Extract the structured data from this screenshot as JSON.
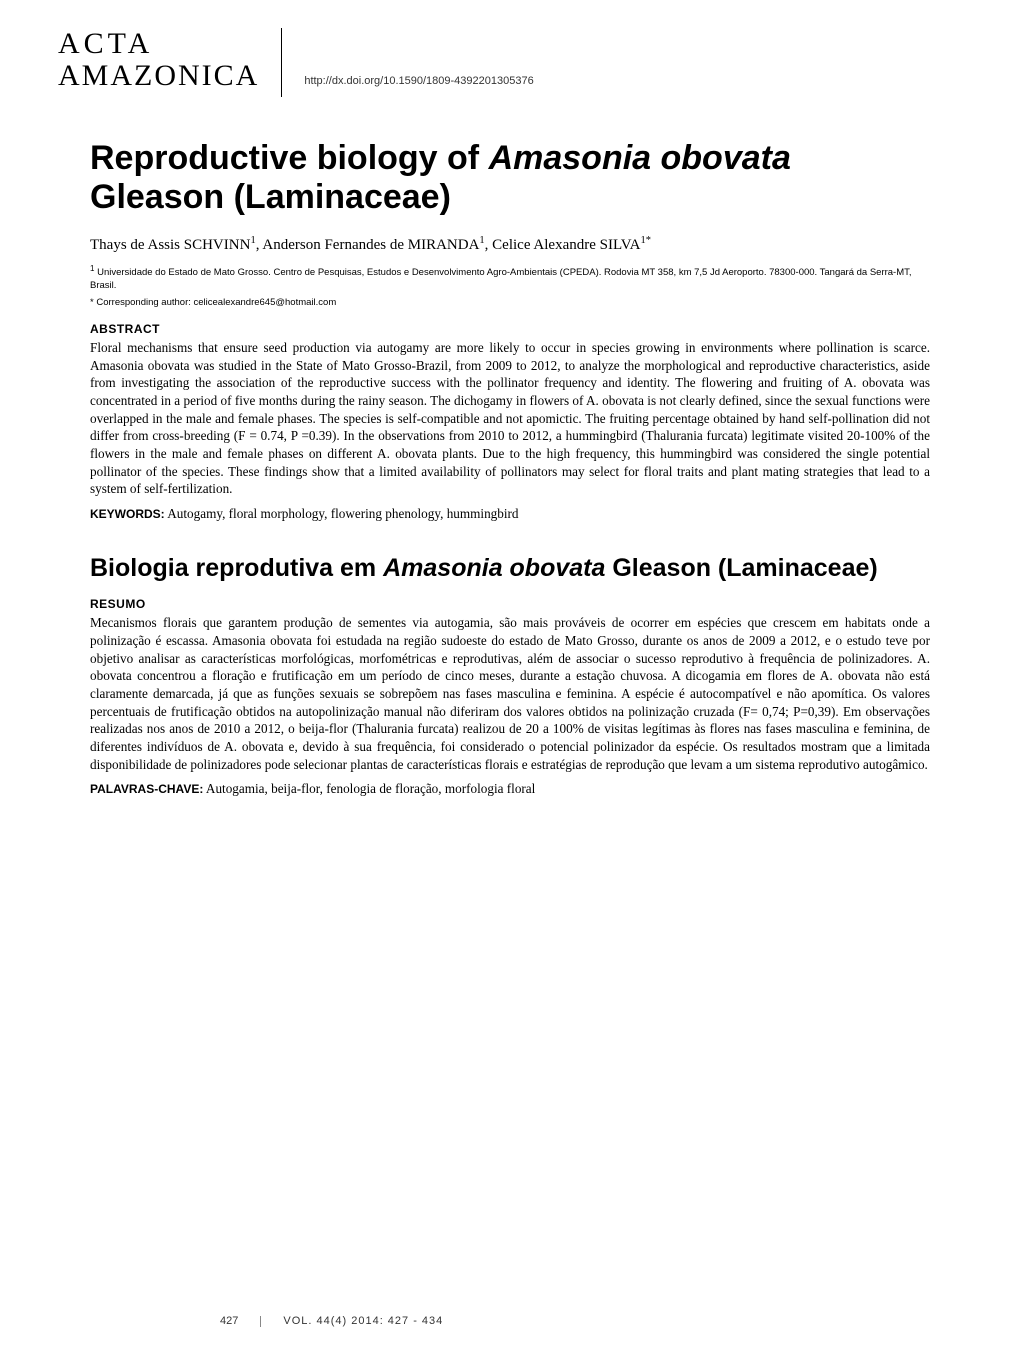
{
  "journal": {
    "line1": "ACTA",
    "line2": "AMAZONICA"
  },
  "doi": "http://dx.doi.org/10.1590/1809-4392201305376",
  "title": "Reproductive biology of Amasonia obovata Gleason (Laminaceae)",
  "title_parts": {
    "pre": "Reproductive biology of ",
    "ital": "Amasonia obovata",
    "post": " Gleason (Laminaceae)"
  },
  "authors_raw": "Thays de Assis SCHVINN¹, Anderson Fernandes de MIRANDA¹, Celice Alexandre SILVA¹*",
  "authors": [
    {
      "name": "Thays de Assis SCHVINN",
      "sup": "1"
    },
    {
      "name": "Anderson Fernandes de MIRANDA",
      "sup": "1"
    },
    {
      "name": "Celice Alexandre SILVA",
      "sup": "1*"
    }
  ],
  "affiliation": {
    "marker": "1",
    "text": "Universidade do Estado de Mato Grosso. Centro de Pesquisas, Estudos e Desenvolvimento Agro-Ambientais (CPEDA). Rodovia MT 358, km 7,5 Jd Aeroporto. 78300-000. Tangará da Serra-MT, Brasil."
  },
  "corresponding": {
    "marker": "*",
    "text": "Corresponding author: celicealexandre645@hotmail.com"
  },
  "abstract": {
    "label": "ABSTRACT",
    "body": "Floral mechanisms that ensure seed production via autogamy are more likely to occur in species growing in environments where pollination is scarce. Amasonia obovata was studied in the State of Mato Grosso-Brazil, from 2009 to 2012, to analyze the morphological  and reproductive characteristics, aside from investigating the association of the reproductive success with the pollinator frequency and identity. The flowering and fruiting of A. obovata was concentrated in a period of five months during the rainy season. The dichogamy in flowers of A. obovata is not clearly defined, since the sexual functions were overlapped in the male and female phases. The species is self-compatible and not apomictic. The fruiting percentage obtained by hand self-pollination did not differ from cross-breeding (F = 0.74, P =0.39). In the observations from 2010 to 2012, a hummingbird (Thalurania furcata) legitimate visited 20-100% of the flowers in the male and female phases on different A. obovata plants. Due to the high frequency, this hummingbird was considered the single potential pollinator of the species. These findings show that a limited availability of pollinators may select for floral traits and plant mating strategies that lead to a system of self-fertilization.",
    "keywords_label": "KEYWORDS:",
    "keywords": "Autogamy, floral morphology, flowering phenology, hummingbird"
  },
  "pt_title_parts": {
    "pre": "Biologia reprodutiva em ",
    "ital": "Amasonia obovata",
    "post": " Gleason (Laminaceae)"
  },
  "resumo": {
    "label": "RESUMO",
    "body": "Mecanismos florais que garantem produção de sementes via autogamia, são mais prováveis de ocorrer em espécies que crescem em habitats onde a polinização é escassa. Amasonia obovata foi estudada na região sudoeste do estado de Mato Grosso, durante os anos de 2009 a 2012, e o estudo teve por objetivo analisar as características morfológicas, morfométricas e reprodutivas, além de associar o sucesso reprodutivo à frequência de polinizadores.  A. obovata concentrou a floração e frutificação em um período de cinco meses, durante a estação chuvosa.  A dicogamia em flores de A. obovata não está claramente demarcada, já que as funções sexuais se sobrepõem nas fases masculina e feminina.  A espécie é autocompatível e não apomítica. Os valores percentuais de frutificação obtidos na autopolinização manual não diferiram dos valores obtidos na polinização cruzada (F= 0,74; P=0,39). Em observações realizadas nos anos de 2010 a 2012, o beija-flor (Thalurania furcata) realizou de 20 a 100% de visitas legítimas às flores nas fases masculina e feminina, de diferentes indivíduos de A. obovata e, devido à sua frequência, foi considerado o potencial polinizador da espécie. Os resultados mostram que a limitada disponibilidade de polinizadores pode selecionar plantas de características florais e estratégias de reprodução que levam a um sistema reprodutivo autogâmico.",
    "keywords_label": "PALAVRAS-CHAVE:",
    "keywords": "Autogamia, beija-flor, fenologia de floração, morfologia floral"
  },
  "footer": {
    "page": "427",
    "running": "VOL. 44(4) 2014: 427 - 434"
  },
  "colors": {
    "bg": "#ffffff",
    "text": "#000000",
    "muted": "#333333"
  },
  "typography": {
    "title_font": "Arial",
    "title_size_pt": 26,
    "title_weight": "bold",
    "body_font": "Georgia",
    "body_size_pt": 10,
    "label_font": "Arial",
    "label_size_pt": 9
  }
}
